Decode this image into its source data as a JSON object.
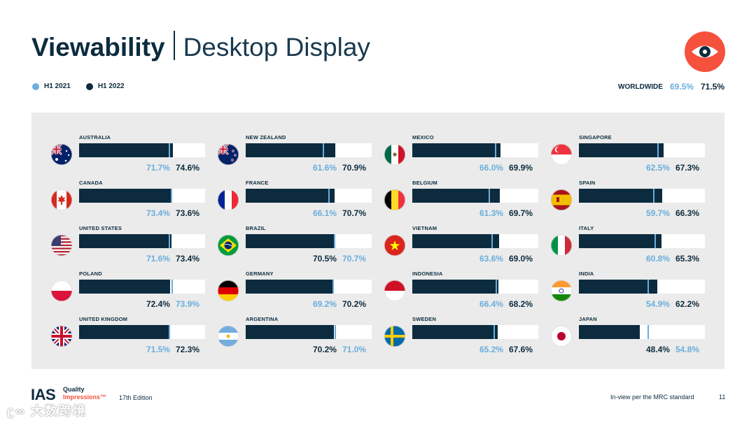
{
  "header": {
    "title_bold": "Viewability",
    "title_light": "Desktop Display"
  },
  "legend": [
    {
      "label": "H1 2021",
      "color": "#6aaedc"
    },
    {
      "label": "H1 2022",
      "color": "#0c2b3e"
    }
  ],
  "worldwide": {
    "label": "WORLDWIDE",
    "h1_2021": "69.5%",
    "h1_2022": "71.5%"
  },
  "colors": {
    "h1_2021": "#6aaedc",
    "h1_2022": "#0c2b3e",
    "brand": "#f5513c"
  },
  "chart_data": {
    "type": "bar",
    "orientation": "horizontal",
    "series": [
      {
        "name": "H1 2021",
        "color": "#6aaedc"
      },
      {
        "name": "H1 2022",
        "color": "#0c2b3e"
      }
    ],
    "countries": [
      {
        "name": "AUSTRALIA",
        "flag": "australia-flag-icon",
        "h1_2021": 71.7,
        "h1_2022": 74.6,
        "label_2021": "71.7%",
        "label_2022": "74.6%"
      },
      {
        "name": "CANADA",
        "flag": "canada-flag-icon",
        "h1_2021": 73.4,
        "h1_2022": 73.6,
        "label_2021": "73.4%",
        "label_2022": "73.6%"
      },
      {
        "name": "UNITED STATES",
        "flag": "usa-flag-icon",
        "h1_2021": 71.6,
        "h1_2022": 73.4,
        "label_2021": "71.6%",
        "label_2022": "73.4%"
      },
      {
        "name": "POLAND",
        "flag": "poland-flag-icon",
        "h1_2021": 73.9,
        "h1_2022": 72.4,
        "label_2021": "73.9%",
        "label_2022": "72.4%"
      },
      {
        "name": "UNITED KINGDOM",
        "flag": "uk-flag-icon",
        "h1_2021": 71.5,
        "h1_2022": 72.3,
        "label_2021": "71.5%",
        "label_2022": "72.3%"
      },
      {
        "name": "NEW ZEALAND",
        "flag": "new-zealand-flag-icon",
        "h1_2021": 61.6,
        "h1_2022": 70.9,
        "label_2021": "61.6%",
        "label_2022": "70.9%"
      },
      {
        "name": "FRANCE",
        "flag": "france-flag-icon",
        "h1_2021": 66.1,
        "h1_2022": 70.7,
        "label_2021": "66.1%",
        "label_2022": "70.7%"
      },
      {
        "name": "BRAZIL",
        "flag": "brazil-flag-icon",
        "h1_2021": 70.7,
        "h1_2022": 70.5,
        "label_2021": "70.7%",
        "label_2022": "70.5%"
      },
      {
        "name": "GERMANY",
        "flag": "germany-flag-icon",
        "h1_2021": 69.2,
        "h1_2022": 70.2,
        "label_2021": "69.2%",
        "label_2022": "70.2%"
      },
      {
        "name": "ARGENTINA",
        "flag": "argentina-flag-icon",
        "h1_2021": 71.0,
        "h1_2022": 70.2,
        "label_2021": "71.0%",
        "label_2022": "70.2%"
      },
      {
        "name": "MEXICO",
        "flag": "mexico-flag-icon",
        "h1_2021": 66.0,
        "h1_2022": 69.9,
        "label_2021": "66.0%",
        "label_2022": "69.9%"
      },
      {
        "name": "BELGIUM",
        "flag": "belgium-flag-icon",
        "h1_2021": 61.3,
        "h1_2022": 69.7,
        "label_2021": "61.3%",
        "label_2022": "69.7%"
      },
      {
        "name": "VIETNAM",
        "flag": "vietnam-flag-icon",
        "h1_2021": 63.6,
        "h1_2022": 69.0,
        "label_2021": "63.6%",
        "label_2022": "69.0%"
      },
      {
        "name": "INDONESIA",
        "flag": "indonesia-flag-icon",
        "h1_2021": 66.4,
        "h1_2022": 68.2,
        "label_2021": "66.4%",
        "label_2022": "68.2%"
      },
      {
        "name": "SWEDEN",
        "flag": "sweden-flag-icon",
        "h1_2021": 65.2,
        "h1_2022": 67.6,
        "label_2021": "65.2%",
        "label_2022": "67.6%"
      },
      {
        "name": "SINGAPORE",
        "flag": "singapore-flag-icon",
        "h1_2021": 62.5,
        "h1_2022": 67.3,
        "label_2021": "62.5%",
        "label_2022": "67.3%"
      },
      {
        "name": "SPAIN",
        "flag": "spain-flag-icon",
        "h1_2021": 59.7,
        "h1_2022": 66.3,
        "label_2021": "59.7%",
        "label_2022": "66.3%"
      },
      {
        "name": "ITALY",
        "flag": "italy-flag-icon",
        "h1_2021": 60.8,
        "h1_2022": 65.3,
        "label_2021": "60.8%",
        "label_2022": "65.3%"
      },
      {
        "name": "INDIA",
        "flag": "india-flag-icon",
        "h1_2021": 54.9,
        "h1_2022": 62.2,
        "label_2021": "54.9%",
        "label_2022": "62.2%"
      },
      {
        "name": "JAPAN",
        "flag": "japan-flag-icon",
        "h1_2021": 54.8,
        "h1_2022": 48.4,
        "label_2021": "54.8%",
        "label_2022": "48.4%"
      }
    ],
    "xlim": [
      0,
      100
    ]
  },
  "footer": {
    "logo_text": "IAS",
    "brand_line1": "Quality",
    "brand_line2": "Impressions™",
    "edition": "17th Edition",
    "note": "In-view per the MRC standard",
    "page_number": "11"
  },
  "watermark": {
    "text": "大数跨境",
    "logo": "跨境-logo"
  }
}
